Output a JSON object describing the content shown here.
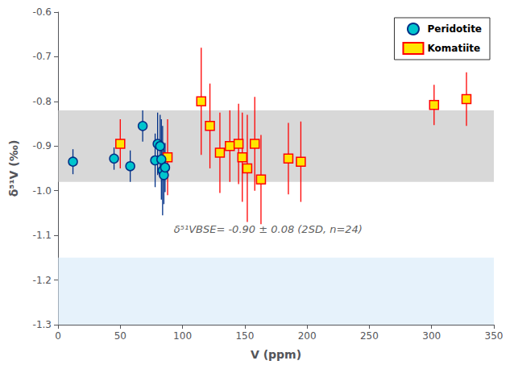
{
  "chart_data": {
    "type": "scatter",
    "xlabel": "V (ppm)",
    "ylabel": "δ⁵¹V (‰)",
    "xlim": [
      0,
      350
    ],
    "ylim": [
      -1.3,
      -0.6
    ],
    "xticks": [
      0,
      50,
      100,
      150,
      200,
      250,
      300,
      350
    ],
    "yticks": [
      -1.3,
      -1.2,
      -1.1,
      {
        "value": -1.0,
        "label": "-1.0"
      },
      -0.9,
      -0.8,
      -0.7,
      -0.6
    ],
    "grid": false,
    "legend": "upper right",
    "bands": [
      {
        "range": [
          -1.3,
          -1.15
        ],
        "color": "#D6EAF8"
      },
      {
        "range": [
          -0.98,
          -0.82
        ],
        "color": "#BEBEBE"
      }
    ],
    "annotation": {
      "text": "δ⁵¹VBSE= -0.90 ± 0.08 (2SD, n=24)",
      "x": 93,
      "y": -1.075
    },
    "series": [
      {
        "name": "Peridotite",
        "marker": "circle",
        "color": "#00C5CD",
        "edge_color": "#003087",
        "x": [
          12,
          45,
          58,
          68,
          78,
          80,
          82,
          83,
          84,
          85,
          86
        ],
        "values": [
          -0.935,
          -0.928,
          -0.945,
          -0.855,
          -0.932,
          -0.895,
          -0.9,
          -0.93,
          -0.955,
          -0.965,
          -0.948
        ],
        "xerr": [
          2,
          3,
          3,
          3,
          3,
          3,
          3,
          3,
          3,
          3,
          3
        ],
        "yerr": [
          0.028,
          0.025,
          0.035,
          0.035,
          0.06,
          0.07,
          0.07,
          0.09,
          0.1,
          0.065,
          0.055
        ]
      },
      {
        "name": "Komatiite",
        "marker": "square",
        "color": "#FFE600",
        "edge_color": "#FF0000",
        "x": [
          50,
          88,
          115,
          122,
          130,
          138,
          145,
          148,
          152,
          158,
          163,
          185,
          195,
          302,
          328
        ],
        "values": [
          -0.895,
          -0.925,
          -0.8,
          -0.855,
          -0.915,
          -0.9,
          -0.895,
          -0.925,
          -0.95,
          -0.895,
          -0.975,
          -0.928,
          -0.935,
          -0.808,
          -0.795
        ],
        "yerr": [
          0.055,
          0.085,
          0.12,
          0.095,
          0.09,
          0.08,
          0.09,
          0.1,
          0.12,
          0.105,
          0.1,
          0.08,
          0.09,
          0.045,
          0.06
        ]
      }
    ]
  }
}
